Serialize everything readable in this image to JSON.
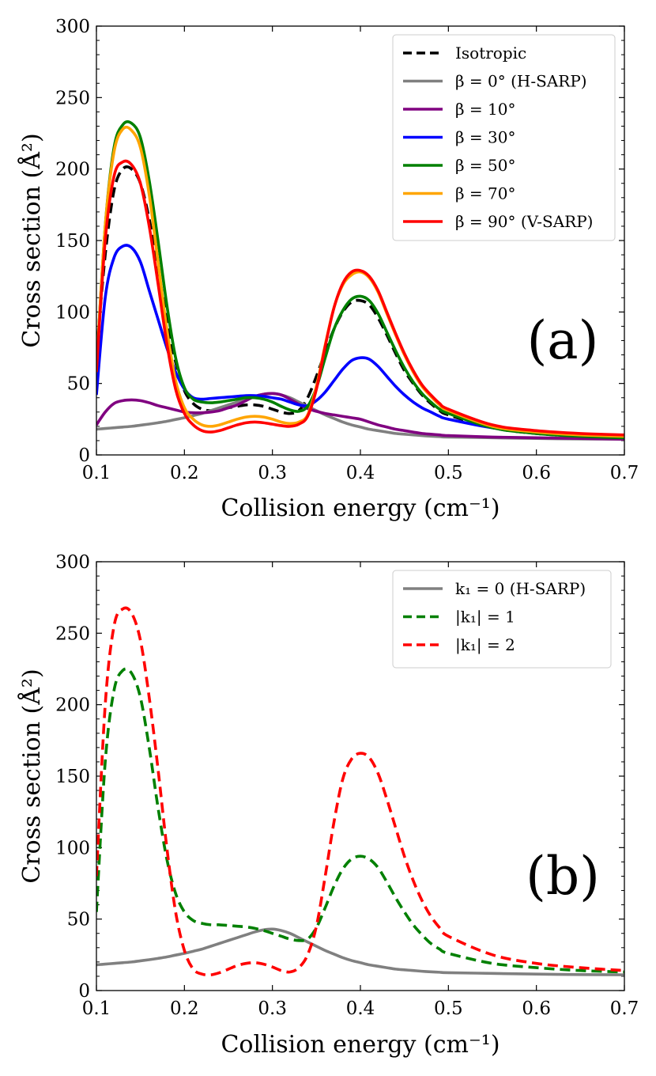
{
  "chart_data": [
    {
      "type": "line",
      "panel_label": "(a)",
      "xlabel": "Collision energy (cm⁻¹)",
      "ylabel": "Cross section (Å²)",
      "xlim": [
        0.1,
        0.7
      ],
      "ylim": [
        0,
        300
      ],
      "xticks": [
        "0.1",
        "0.2",
        "0.3",
        "0.4",
        "0.5",
        "0.6",
        "0.7"
      ],
      "yticks": [
        "0",
        "50",
        "100",
        "150",
        "200",
        "250",
        "300"
      ],
      "legend_position": "top-right",
      "x": [
        0.1,
        0.11,
        0.12,
        0.13,
        0.14,
        0.15,
        0.16,
        0.17,
        0.18,
        0.19,
        0.2,
        0.21,
        0.22,
        0.23,
        0.24,
        0.25,
        0.26,
        0.27,
        0.28,
        0.29,
        0.3,
        0.31,
        0.32,
        0.33,
        0.34,
        0.35,
        0.36,
        0.37,
        0.38,
        0.39,
        0.4,
        0.41,
        0.42,
        0.43,
        0.44,
        0.45,
        0.46,
        0.47,
        0.48,
        0.49,
        0.5,
        0.55,
        0.6,
        0.65,
        0.7
      ],
      "series": [
        {
          "name": "Isotropic",
          "color": "#000000",
          "dash": "dashed",
          "values": [
            70,
            140,
            185,
            200,
            200,
            190,
            165,
            130,
            95,
            65,
            45,
            36,
            32,
            31,
            32,
            33,
            34,
            35,
            35,
            34,
            32,
            30,
            29,
            31,
            40,
            55,
            72,
            88,
            100,
            107,
            108,
            105,
            96,
            84,
            71,
            59,
            50,
            42,
            36,
            31,
            28,
            19,
            15,
            13,
            12
          ]
        },
        {
          "name": "β =   0° (H-SARP)",
          "color": "#808080",
          "dash": "solid",
          "values": [
            18,
            18.5,
            19,
            19.5,
            20,
            20.8,
            21.6,
            22.5,
            23.5,
            24.8,
            26,
            27.5,
            29,
            31,
            33,
            35,
            37,
            39,
            41,
            42.5,
            43,
            42,
            40,
            37,
            34,
            31,
            28,
            25.5,
            23,
            21,
            19.5,
            18,
            17,
            16,
            15,
            14.5,
            14,
            13.5,
            13.1,
            12.8,
            12.5,
            12,
            11.5,
            11.2,
            11
          ]
        },
        {
          "name": "β = 10°",
          "color": "#800080",
          "dash": "solid",
          "values": [
            21,
            30,
            36,
            38,
            38.5,
            38,
            36.5,
            34.5,
            33,
            31.5,
            30,
            29.5,
            29.5,
            30,
            31,
            33,
            35,
            38,
            41,
            42.5,
            43,
            42,
            39,
            35.5,
            32.5,
            30.5,
            29,
            28,
            27,
            26,
            25,
            23,
            21,
            19.5,
            18,
            17,
            16,
            15,
            14.5,
            14,
            13.5,
            12.5,
            12,
            11.5,
            11
          ]
        },
        {
          "name": "β = 30°",
          "color": "#0000ff",
          "dash": "solid",
          "values": [
            42,
            110,
            138,
            146,
            145,
            135,
            115,
            95,
            75,
            58,
            46,
            40,
            39,
            39.5,
            40,
            40.5,
            41,
            41.5,
            41.5,
            41,
            40,
            39,
            37,
            35,
            34.5,
            38,
            44,
            52,
            60,
            66,
            68,
            67,
            62,
            55,
            48,
            42,
            37,
            33,
            30,
            27,
            25,
            19,
            16,
            14,
            13
          ]
        },
        {
          "name": "β = 50°",
          "color": "#008000",
          "dash": "solid",
          "values": [
            60,
            160,
            215,
            231,
            232,
            222,
            192,
            150,
            105,
            68,
            47,
            39,
            37,
            36.5,
            37,
            38,
            39,
            40,
            40,
            39,
            37,
            34,
            31.5,
            30.5,
            34,
            47,
            68,
            88,
            101,
            109,
            111,
            108,
            99,
            86,
            73,
            61,
            51,
            43,
            37,
            32,
            29,
            19,
            15,
            13,
            12
          ]
        },
        {
          "name": "β = 70°",
          "color": "#ffa500",
          "dash": "solid",
          "values": [
            60,
            160,
            212,
            228,
            227,
            215,
            182,
            135,
            88,
            52,
            33,
            25,
            21,
            20,
            21,
            23,
            25,
            26.5,
            27,
            26.5,
            25,
            23,
            22,
            23,
            28,
            48,
            77,
            103,
            119,
            126,
            128,
            124,
            114,
            99,
            84,
            70,
            58,
            48,
            41,
            35,
            31,
            20,
            16,
            14,
            13
          ]
        },
        {
          "name": "β = 90° (V-SARP)",
          "color": "#ff0000",
          "dash": "solid",
          "values": [
            58,
            150,
            195,
            205,
            203,
            190,
            160,
            120,
            78,
            46,
            29,
            21,
            17,
            16,
            17,
            19,
            21,
            22.5,
            23,
            22.5,
            21.5,
            20.5,
            20,
            21.5,
            27,
            46,
            76,
            103,
            120,
            128,
            129,
            125,
            115,
            100,
            85,
            71,
            59,
            49,
            42,
            36,
            32,
            21,
            17,
            15,
            14
          ]
        }
      ]
    },
    {
      "type": "line",
      "panel_label": "(b)",
      "xlabel": "Collision energy (cm⁻¹)",
      "ylabel": "Cross section (Å²)",
      "xlim": [
        0.1,
        0.7
      ],
      "ylim": [
        0,
        300
      ],
      "xticks": [
        "0.1",
        "0.2",
        "0.3",
        "0.4",
        "0.5",
        "0.6",
        "0.7"
      ],
      "yticks": [
        "0",
        "50",
        "100",
        "150",
        "200",
        "250",
        "300"
      ],
      "legend_position": "top-right",
      "x": [
        0.1,
        0.11,
        0.12,
        0.13,
        0.14,
        0.15,
        0.16,
        0.17,
        0.18,
        0.19,
        0.2,
        0.21,
        0.22,
        0.23,
        0.24,
        0.25,
        0.26,
        0.27,
        0.28,
        0.29,
        0.3,
        0.31,
        0.32,
        0.33,
        0.34,
        0.35,
        0.36,
        0.37,
        0.38,
        0.39,
        0.4,
        0.41,
        0.42,
        0.43,
        0.44,
        0.45,
        0.46,
        0.47,
        0.48,
        0.49,
        0.5,
        0.55,
        0.6,
        0.65,
        0.7
      ],
      "series": [
        {
          "name": "k₁ = 0 (H-SARP)",
          "color": "#808080",
          "dash": "solid",
          "values": [
            18,
            18.5,
            19,
            19.5,
            20,
            20.8,
            21.6,
            22.5,
            23.5,
            24.8,
            26,
            27.5,
            29,
            31,
            33,
            35,
            37,
            39,
            41,
            42.5,
            43,
            42,
            40,
            37,
            34,
            31,
            28,
            25.5,
            23,
            21,
            19.5,
            18,
            17,
            16,
            15,
            14.5,
            14,
            13.5,
            13.1,
            12.8,
            12.5,
            12,
            11.5,
            11.2,
            11
          ]
        },
        {
          "name": "|k₁| = 1",
          "color": "#008000",
          "dash": "dashed",
          "values": [
            55,
            160,
            210,
            224,
            222,
            205,
            170,
            128,
            92,
            68,
            55,
            49,
            47,
            46,
            46,
            45.5,
            45,
            44.5,
            43.5,
            42,
            40,
            38,
            36,
            35,
            36,
            44,
            58,
            73,
            85,
            92,
            94,
            92,
            86,
            76,
            65,
            55,
            46,
            39,
            33,
            29,
            26,
            19,
            16,
            14,
            13
          ]
        },
        {
          "name": "|k₁| = 2",
          "color": "#ff0000",
          "dash": "dashed",
          "values": [
            80,
            200,
            255,
            267,
            264,
            245,
            205,
            155,
            100,
            55,
            28,
            15,
            11.5,
            11,
            12.5,
            15,
            17.5,
            19,
            19.5,
            18.5,
            16.5,
            14,
            13,
            16,
            25,
            45,
            80,
            118,
            148,
            162,
            166,
            163,
            152,
            134,
            114,
            94,
            77,
            63,
            52,
            44,
            38,
            25,
            19,
            16,
            14
          ]
        }
      ]
    }
  ]
}
